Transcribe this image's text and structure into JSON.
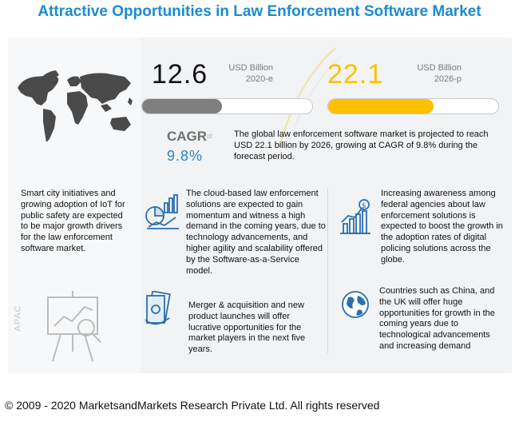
{
  "title": "Attractive Opportunities in Law Enforcement Software Market",
  "metrics": {
    "left": {
      "value": "12.6",
      "unit": "USD Billion",
      "year": "2020-e",
      "fill_percent": 47,
      "color": "#7f7f7f"
    },
    "right": {
      "value": "22.1",
      "unit": "USD Billion",
      "year": "2026-p",
      "fill_percent": 62,
      "color": "#ffc000"
    }
  },
  "cagr": {
    "label": "CAGR",
    "of": "of",
    "value": "9.8%"
  },
  "summary": "The global law enforcement software market is projected to reach USD 22.1 billion by 2026, growing at CAGR of 9.8% during the forecast period.",
  "left_column": {
    "text": "Smart city initiatives and growing adoption of IoT for public safety are expected to be major growth drivers for the law enforcement software market.",
    "region": "APAC"
  },
  "highlights": [
    {
      "icon": "analytics-icon",
      "text": "The cloud-based law enforcement solutions are expected to gain momentum and witness a high demand in the coming years, due to technology advancements, and higher agility and scalability offered by the Software-as-a-Service model."
    },
    {
      "icon": "growth-chart-icon",
      "text": "Increasing awareness among federal agencies about law enforcement solutions is expected to boost the growth in the adoption rates of digital policing solutions across the globe."
    },
    {
      "icon": "money-icon",
      "text": "Merger & acquisition and new product launches will offer lucrative opportunities for the market players in the next five years."
    },
    {
      "icon": "globe-icon",
      "text": "Countries such as China, and the UK will offer huge opportunities for growth in the coming years due to technological advancements and increasing demand"
    }
  ],
  "footer": "© 2009 - 2020 MarketsandMarkets Research Private Ltd. All rights reserved"
}
